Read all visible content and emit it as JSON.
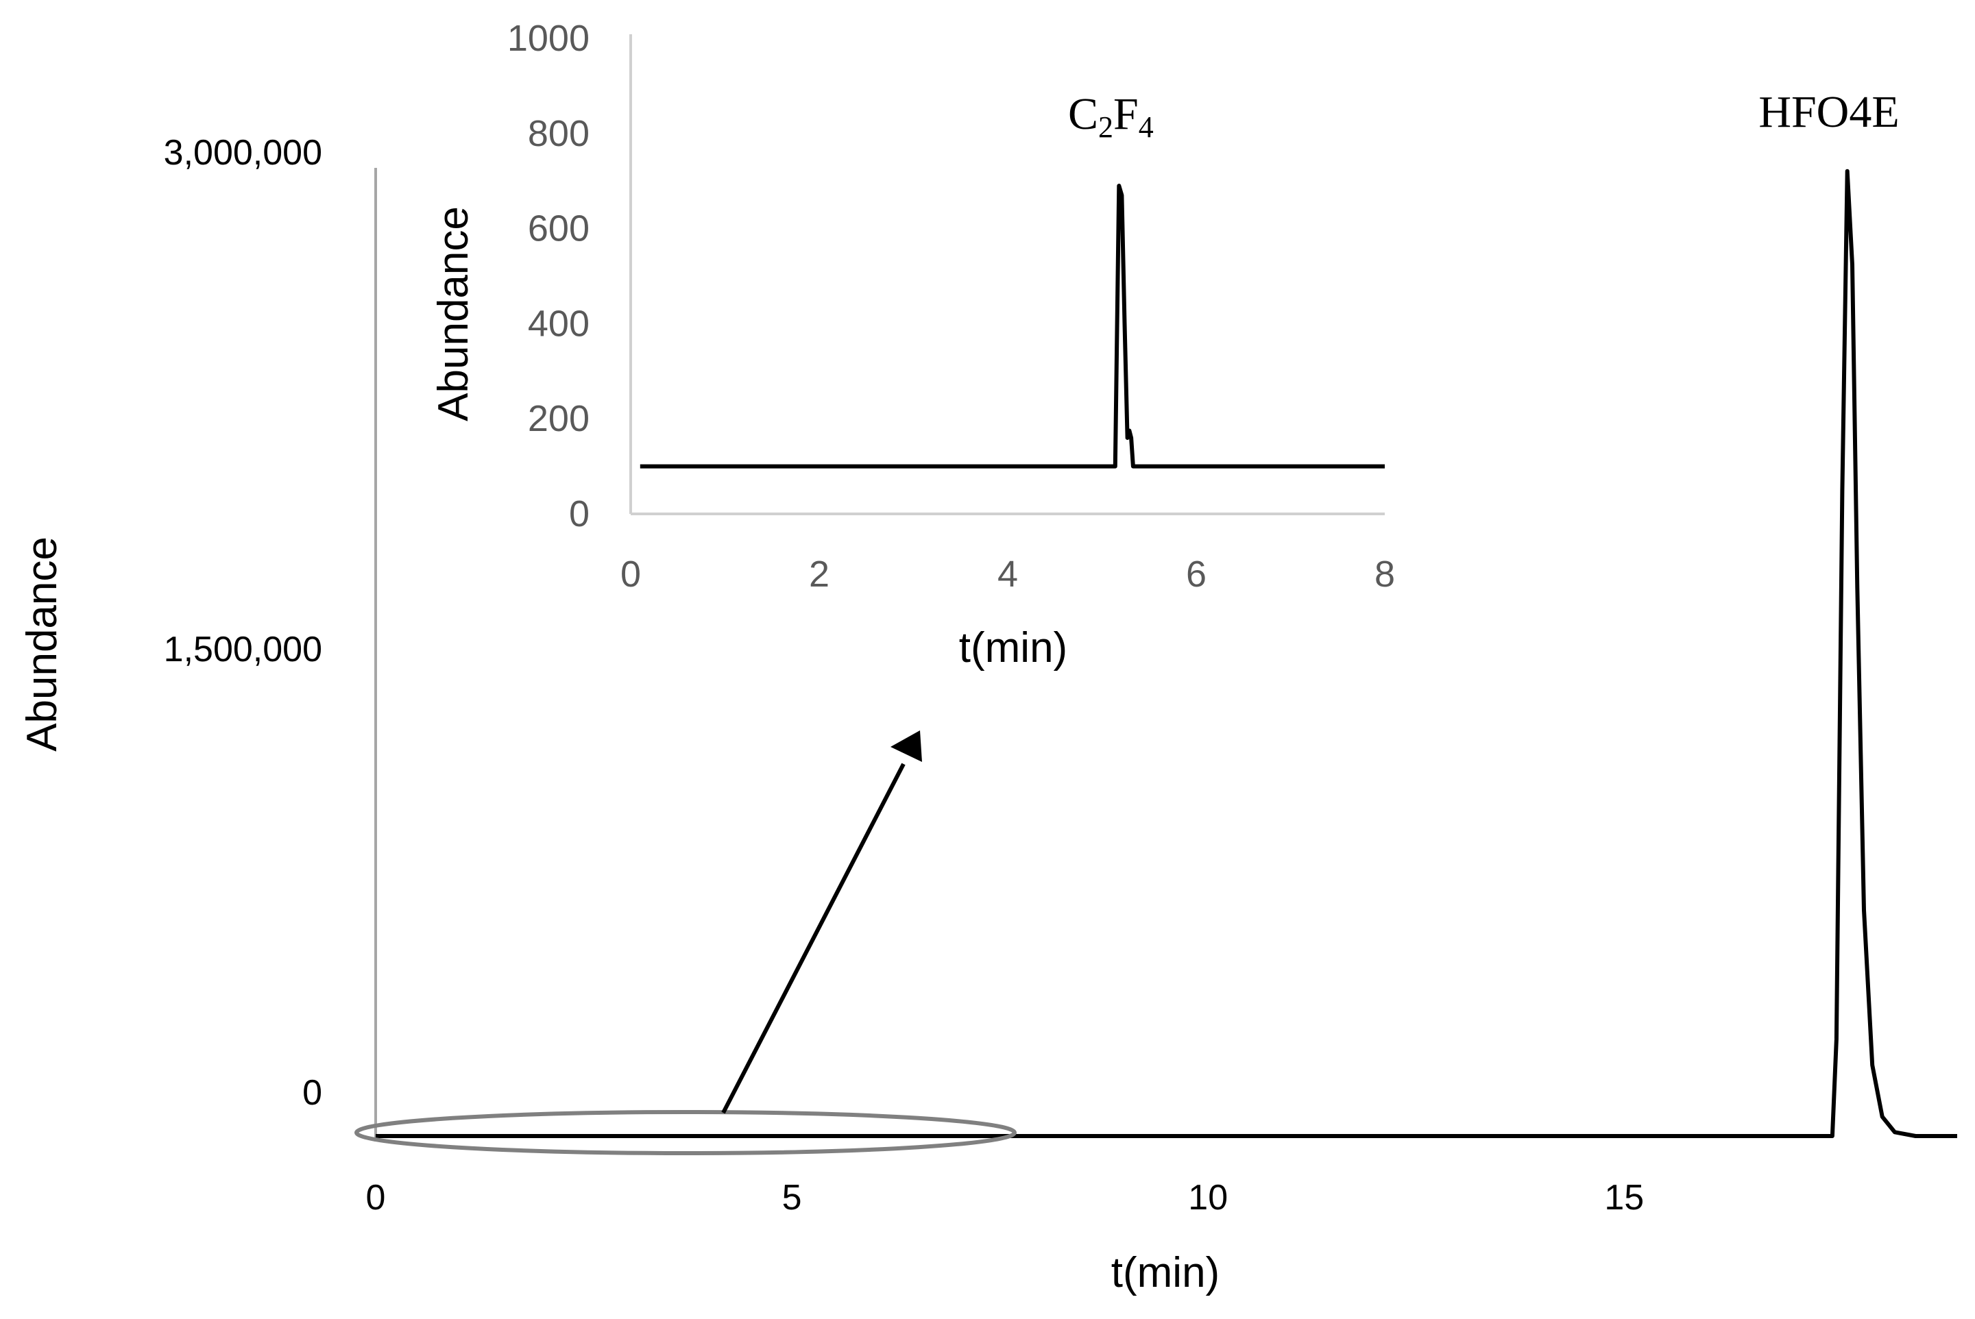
{
  "chart_data": [
    {
      "id": "main",
      "type": "line",
      "title": "",
      "xlabel": "t(min)",
      "ylabel": "Abundance",
      "xlim": [
        0,
        19
      ],
      "ylim": [
        0,
        3000000
      ],
      "xticks": [
        "0",
        "5",
        "10",
        "15"
      ],
      "yticks": [
        "0",
        "1,500,000",
        "3,000,000"
      ],
      "series": [
        {
          "name": "Abundance",
          "x": [
            0,
            17.5,
            17.55,
            17.62,
            17.68,
            17.74,
            17.8,
            17.88,
            17.98,
            18.1,
            18.25,
            18.5,
            19
          ],
          "y": [
            0,
            0,
            300000,
            2000000,
            2990000,
            2700000,
            1700000,
            700000,
            220000,
            60000,
            12000,
            0,
            0
          ]
        }
      ],
      "annotations": [
        {
          "text": "HFO4E",
          "x": 17.7,
          "y": 3000000
        }
      ],
      "callout": "ellipse around t = 0–7.7 min at baseline with arrow pointing to inset",
      "grid": false
    },
    {
      "id": "inset",
      "type": "line",
      "title": "",
      "xlabel": "t(min)",
      "ylabel": "Abundance",
      "xlim": [
        0,
        8
      ],
      "ylim": [
        0,
        1000
      ],
      "xticks": [
        "0",
        "2",
        "4",
        "6",
        "8"
      ],
      "yticks": [
        "0",
        "200",
        "400",
        "600",
        "800",
        "1000"
      ],
      "series": [
        {
          "name": "Abundance",
          "x": [
            0.1,
            5.1,
            5.14,
            5.18,
            5.21,
            5.24,
            5.27,
            5.29,
            5.31,
            5.33,
            5.36,
            8
          ],
          "y": [
            100,
            100,
            100,
            690,
            670,
            400,
            160,
            175,
            160,
            100,
            100,
            100
          ]
        }
      ],
      "annotations": [
        {
          "text": "C2F4",
          "x": 5.2,
          "y": 800
        }
      ],
      "grid": false
    }
  ],
  "labels": {
    "main_xlabel": "t(min)",
    "main_ylabel": "Abundance",
    "inset_xlabel": "t(min)",
    "inset_ylabel": "Abundance",
    "peak_main": "HFO4E",
    "peak_inset_base1": "C",
    "peak_inset_sub1": "2",
    "peak_inset_base2": "F",
    "peak_inset_sub2": "4"
  },
  "colors": {
    "line": "#000000",
    "main_axis": "#a6a6a6",
    "inset_axis": "#d0d0d0",
    "inset_tick_text": "#595959",
    "ellipse": "#808080"
  }
}
